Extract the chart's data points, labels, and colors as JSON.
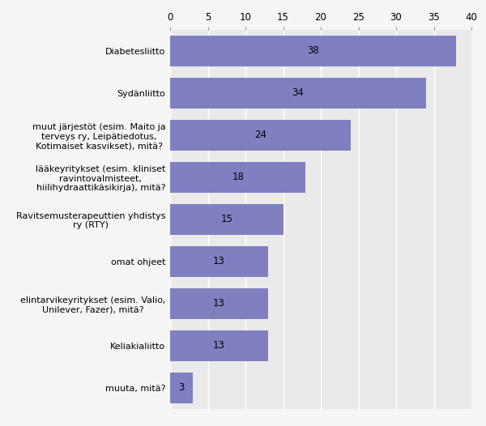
{
  "categories": [
    "muuta, mitä?",
    "Keliakialiitto",
    "elintarvikeyritykset (esim. Valio,\nUnilever, Fazer), mitä?",
    "omat ohjeet",
    "Ravitsemusterapeuttien yhdistys\nry (RTY)",
    "lääkeyritykset (esim. kliniset\nravintovalmisteet,\nhiilihydraattikäsikirja), mitä?",
    "muut järjestöt (esim. Maito ja\nterveys ry, Leipätiedotus,\nKotimaiset kasvikset), mitä?",
    "Sydänliitto",
    "Diabetesliitto"
  ],
  "values": [
    3,
    13,
    13,
    13,
    15,
    18,
    24,
    34,
    38
  ],
  "bar_color": "#8080c0",
  "plot_bg_color": "#eaeaea",
  "fig_bg_color": "#f5f5f5",
  "xlim": [
    0,
    40
  ],
  "xticks": [
    0,
    5,
    10,
    15,
    20,
    25,
    30,
    35,
    40
  ],
  "label_fontsize": 8,
  "value_fontsize": 8.5,
  "tick_fontsize": 8.5
}
